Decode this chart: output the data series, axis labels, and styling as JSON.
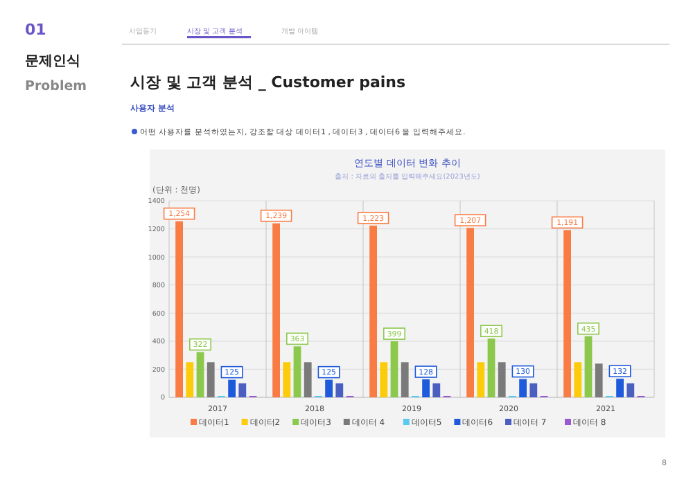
{
  "chart_data": {
    "type": "bar",
    "title": "연도별 데이터 변화 추이",
    "ylabel": "(단위 : 천명)",
    "annotations": [
      "출처 : 자료의 출처를 입력해주세요(2023년도)",
      "01",
      "문제인식",
      "Problem",
      "사업동기",
      "시장 및 고객 분석",
      "개발 아이템",
      "시장 및 고객 분석 _ Customer pains",
      "사용자 분석",
      "어떤 사용자를 분석하였는지, 강조할 대상 데이터1 , 데이터3 , 데이터6 을 입력해주세요.",
      "8"
    ],
    "categories": [
      "2017",
      "2018",
      "2019",
      "2020",
      "2021"
    ],
    "ylim": [
      0,
      1400
    ],
    "yticks": [
      0,
      200,
      400,
      600,
      800,
      1000,
      1200,
      1400
    ],
    "grid": true,
    "legend": "bottom",
    "series": [
      {
        "name": "데이터1",
        "color": "#f97c45",
        "values": [
          1254,
          1239,
          1223,
          1207,
          1191
        ],
        "value_labels": [
          "1,254",
          "1,239",
          "1,223",
          "1,207",
          "1,191"
        ]
      },
      {
        "name": "데이터2",
        "color": "#fccb0a",
        "values": [
          250,
          250,
          250,
          250,
          250
        ]
      },
      {
        "name": "데이터3",
        "color": "#8cc84b",
        "values": [
          322,
          363,
          399,
          418,
          435
        ],
        "value_labels": [
          "322",
          "363",
          "399",
          "418",
          "435"
        ]
      },
      {
        "name": "데이터 4",
        "color": "#7a7a7a",
        "values": [
          250,
          250,
          250,
          250,
          240
        ]
      },
      {
        "name": "데이터5",
        "color": "#5bc8ee",
        "values": [
          10,
          10,
          10,
          10,
          10
        ]
      },
      {
        "name": "데이터6",
        "color": "#1e5adc",
        "values": [
          125,
          125,
          128,
          130,
          132
        ],
        "value_labels": [
          "125",
          "125",
          "128",
          "130",
          "132"
        ]
      },
      {
        "name": "데이터 7",
        "color": "#4b5fc0",
        "values": [
          100,
          100,
          100,
          100,
          100
        ]
      },
      {
        "name": "데이터 8",
        "color": "#9b59d0",
        "values": [
          10,
          10,
          10,
          10,
          10
        ]
      }
    ]
  }
}
